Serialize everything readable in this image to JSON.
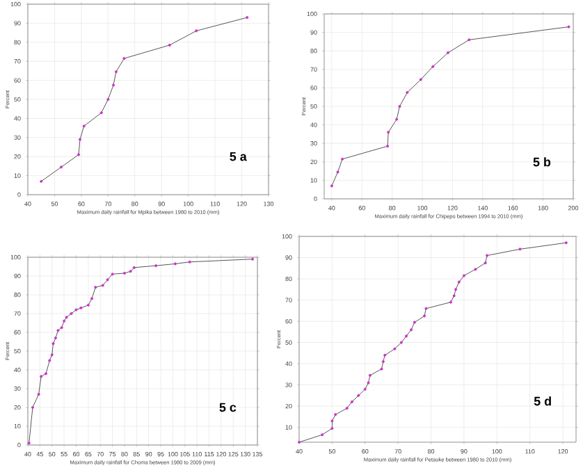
{
  "chart_data": [
    {
      "type": "line",
      "xlabel": "Maximum daily rainfall for Mpika between 1980 to 2010 (mm)",
      "ylabel": "Percent",
      "annotations": [
        "5 a"
      ],
      "xlim": [
        40,
        130
      ],
      "ylim": [
        0,
        100
      ],
      "xticks": [
        40,
        50,
        60,
        70,
        80,
        90,
        100,
        110,
        120,
        130
      ],
      "yticks": [
        0,
        10,
        20,
        30,
        40,
        50,
        60,
        70,
        80,
        90,
        100
      ],
      "grid": true,
      "marker": "circle",
      "series": [
        {
          "color": "#555555",
          "x": [
            45,
            52.5,
            59,
            59.5,
            61,
            67.5,
            70,
            72,
            73,
            76,
            93,
            103,
            122
          ],
          "values": [
            7,
            14.5,
            21,
            29,
            36,
            43,
            50,
            57.5,
            64.5,
            71.5,
            78.5,
            86,
            93
          ]
        }
      ]
    },
    {
      "type": "line",
      "xlabel": "Maximum daily rainfall for Chipepo between 1994 to 2010 (mm)",
      "ylabel": "Percent",
      "annotations": [
        "5 b"
      ],
      "xlim": [
        35,
        200
      ],
      "ylim": [
        0,
        100
      ],
      "xticks": [
        40,
        60,
        80,
        100,
        120,
        140,
        160,
        180,
        200
      ],
      "yticks": [
        0,
        10,
        20,
        30,
        40,
        50,
        60,
        70,
        80,
        90,
        100
      ],
      "grid": true,
      "marker": "circle",
      "series": [
        {
          "color": "#555555",
          "x": [
            40,
            44,
            47,
            77,
            77.5,
            83,
            85,
            90,
            99,
            107,
            117,
            131,
            197
          ],
          "values": [
            7,
            14.5,
            21.5,
            28.5,
            36,
            43,
            50,
            57.5,
            64.5,
            71.5,
            79,
            86,
            93
          ]
        }
      ]
    },
    {
      "type": "line",
      "xlabel": "Maximum daily rainfall for Choma between 1980 to 2009 (mm)",
      "ylabel": "Percent",
      "annotations": [
        "5 c"
      ],
      "xlim": [
        40,
        135
      ],
      "ylim": [
        0,
        100
      ],
      "xticks": [
        40,
        45,
        50,
        55,
        60,
        65,
        70,
        75,
        80,
        85,
        90,
        95,
        100,
        105,
        110,
        115,
        120,
        125,
        130,
        135
      ],
      "yticks": [
        0,
        10,
        20,
        30,
        40,
        50,
        60,
        70,
        80,
        90,
        100
      ],
      "grid": true,
      "marker": "circle",
      "series": [
        {
          "color": "#555555",
          "x": [
            40.5,
            42,
            44.5,
            45.5,
            47.5,
            49,
            50,
            50.5,
            51.5,
            52.5,
            54,
            55,
            56,
            58,
            60,
            62,
            65,
            66.5,
            68,
            71,
            73,
            75,
            80,
            82.5,
            84,
            93,
            101,
            107,
            133
          ],
          "values": [
            1,
            20,
            27,
            36.5,
            38,
            45,
            48,
            54,
            57,
            61,
            62.5,
            66,
            68,
            70,
            72,
            73,
            74.5,
            78,
            84,
            85,
            88,
            91,
            91.5,
            92.5,
            94.5,
            95.5,
            96.5,
            97.5,
            99
          ]
        }
      ]
    },
    {
      "type": "line",
      "xlabel": "Maximum daily rainfall for Petauke between 1980 to 2010 (mm)",
      "ylabel": "Percent",
      "annotations": [
        "5 d"
      ],
      "xlim": [
        40,
        124
      ],
      "ylim": [
        3,
        100
      ],
      "xticks": [
        40,
        50,
        60,
        70,
        80,
        90,
        100,
        110,
        120
      ],
      "yticks": [
        10,
        20,
        30,
        40,
        50,
        60,
        70,
        80,
        90,
        100
      ],
      "grid": true,
      "marker": "circle",
      "series": [
        {
          "color": "#555555",
          "x": [
            40,
            47,
            50,
            50,
            51,
            54.5,
            56,
            58,
            60,
            61,
            61.5,
            65,
            65.5,
            66,
            69,
            71,
            72.5,
            74,
            75,
            78,
            78.5,
            86,
            87,
            87.5,
            88.5,
            90,
            93.5,
            96.5,
            97,
            107,
            121
          ],
          "values": [
            3,
            6.5,
            9.5,
            13,
            16,
            19,
            22,
            25,
            28,
            31,
            34.5,
            37.5,
            41,
            44,
            47,
            50,
            53,
            56,
            59.5,
            62.5,
            66,
            69,
            72,
            75,
            78.5,
            81.5,
            84.5,
            87.5,
            91,
            94,
            97
          ]
        }
      ]
    }
  ]
}
